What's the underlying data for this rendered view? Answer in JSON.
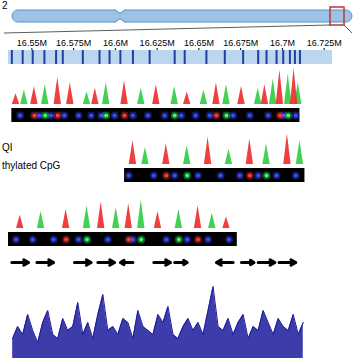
{
  "ideogram": {
    "label": "2"
  },
  "annotations": [
    "QI",
    "thylated CpG"
  ],
  "chart_data": [
    {
      "type": "ruler",
      "xlim": [
        16.536,
        16.73
      ],
      "xticks": [
        {
          "value": 16.55,
          "label": "16.55M"
        },
        {
          "value": 16.575,
          "label": "16.575M"
        },
        {
          "value": 16.6,
          "label": "16.6M"
        },
        {
          "value": 16.625,
          "label": "16.625M"
        },
        {
          "value": 16.65,
          "label": "16.65M"
        },
        {
          "value": 16.675,
          "label": "16.675M"
        },
        {
          "value": 16.7,
          "label": "16.7M"
        },
        {
          "value": 16.725,
          "label": "16.725M"
        }
      ],
      "cpg_sites": [
        16.538,
        16.5445,
        16.5505,
        16.5575,
        16.5645,
        16.5685,
        16.5805,
        16.5905,
        16.5965,
        16.603,
        16.6105,
        16.6205,
        16.6355,
        16.6415,
        16.6545,
        16.6655,
        16.6765,
        16.6855,
        16.6905,
        16.6965,
        16.7005,
        16.7045,
        16.7075,
        16.7105
      ],
      "color": "#1d3fa6"
    },
    {
      "type": "peaks",
      "xlim": [
        16.536,
        16.73
      ],
      "ylim": [
        0,
        100
      ],
      "tick_labels": false,
      "series": [
        {
          "color": "#2ecc40",
          "x": [
            16.5455,
            16.558,
            16.583,
            16.5945,
            16.6155,
            16.6355,
            16.653,
            16.6665,
            16.6855,
            16.6945,
            16.7035,
            16.7095
          ],
          "values": [
            40,
            55,
            35,
            60,
            45,
            50,
            40,
            55,
            45,
            70,
            85,
            60
          ]
        },
        {
          "color": "#ee2a2a",
          "x": [
            16.5405,
            16.5515,
            16.5655,
            16.573,
            16.588,
            16.6055,
            16.6245,
            16.643,
            16.6605,
            16.6755,
            16.6895,
            16.6985,
            16.707
          ],
          "values": [
            30,
            50,
            75,
            60,
            45,
            65,
            55,
            35,
            60,
            50,
            55,
            95,
            100
          ]
        }
      ]
    },
    {
      "type": "image",
      "xlim": [
        16.536,
        16.73
      ],
      "extent": [
        16.538,
        16.7105
      ],
      "series": [
        {
          "color": "#3a4dff",
          "x": [
            16.543,
            16.5545,
            16.5615,
            16.5695,
            16.578,
            16.5855,
            16.5915,
            16.5995,
            16.6105,
            16.6195,
            16.6295,
            16.6395,
            16.648,
            16.6565,
            16.6705,
            16.6805,
            16.6915,
            16.7005,
            16.708
          ]
        },
        {
          "color": "#ff3b3b",
          "x": [
            16.5515,
            16.5655,
            16.6055,
            16.6605,
            16.6985
          ]
        },
        {
          "color": "#3bff6a",
          "x": [
            16.558,
            16.5945,
            16.6355,
            16.6665,
            16.7035
          ]
        }
      ]
    },
    {
      "type": "peaks",
      "xlim": [
        16.536,
        16.73
      ],
      "ylim": [
        0,
        100
      ],
      "tick_labels": false,
      "series": [
        {
          "color": "#ee2a2a",
          "x": [
            16.6105,
            16.6305,
            16.6555,
            16.6805,
            16.703
          ],
          "values": [
            70,
            60,
            80,
            75,
            90
          ]
        },
        {
          "color": "#2ecc40",
          "x": [
            16.618,
            16.643,
            16.668,
            16.6905,
            16.7105
          ],
          "values": [
            50,
            55,
            45,
            60,
            70
          ]
        }
      ]
    },
    {
      "type": "image",
      "xlim": [
        16.536,
        16.73
      ],
      "extent": [
        16.6055,
        16.7135
      ],
      "series": [
        {
          "color": "#3a4dff",
          "x": [
            16.608,
            16.623,
            16.6355,
            16.6495,
            16.663,
            16.6745,
            16.6855,
            16.6965,
            16.708
          ]
        },
        {
          "color": "#ff3b3b",
          "x": [
            16.6305,
            16.6805
          ]
        },
        {
          "color": "#3bff6a",
          "x": [
            16.643,
            16.6905
          ]
        }
      ]
    },
    {
      "type": "peaks",
      "xlim": [
        16.536,
        16.73
      ],
      "ylim": [
        0,
        100
      ],
      "tick_labels": false,
      "series": [
        {
          "color": "#2ecc40",
          "x": [
            16.5555,
            16.583,
            16.6005,
            16.6155,
            16.638,
            16.658
          ],
          "values": [
            45,
            60,
            55,
            75,
            50,
            40
          ]
        },
        {
          "color": "#ee2a2a",
          "x": [
            16.543,
            16.5705,
            16.5915,
            16.608,
            16.6255,
            16.6495,
            16.6665
          ],
          "values": [
            35,
            50,
            70,
            65,
            45,
            60,
            30
          ]
        }
      ]
    },
    {
      "type": "image",
      "xlim": [
        16.536,
        16.73
      ],
      "extent": [
        16.536,
        16.673
      ],
      "series": [
        {
          "color": "#3a4dff",
          "x": [
            16.5405,
            16.5505,
            16.563,
            16.578,
            16.5955,
            16.6105,
            16.6305,
            16.643,
            16.6555,
            16.668
          ]
        },
        {
          "color": "#ff3b3b",
          "x": [
            16.5705,
            16.608,
            16.6495
          ]
        },
        {
          "color": "#3bff6a",
          "x": [
            16.583,
            16.6155,
            16.638
          ]
        }
      ]
    },
    {
      "type": "genes",
      "xlim": [
        16.536,
        16.73
      ],
      "color": "#000000",
      "starts": [
        16.538,
        16.553,
        16.5755,
        16.5895,
        16.6105,
        16.623,
        16.6355,
        16.6705,
        16.6755,
        16.6855,
        16.698
      ],
      "ends": [
        16.548,
        16.563,
        16.5855,
        16.5995,
        16.603,
        16.633,
        16.643,
        16.6605,
        16.683,
        16.6955,
        16.708
      ]
    },
    {
      "type": "signal",
      "xlim": [
        16.536,
        16.73
      ],
      "ylim": [
        0,
        100
      ],
      "tick_labels": false,
      "color": "#1a1a9c",
      "x": [
        16.5385,
        16.5415,
        16.5445,
        16.5475,
        16.5505,
        16.5535,
        16.5565,
        16.5595,
        16.5625,
        16.5655,
        16.5685,
        16.5715,
        16.5745,
        16.5775,
        16.5805,
        16.5835,
        16.5865,
        16.5895,
        16.5925,
        16.5955,
        16.5985,
        16.6015,
        16.6045,
        16.6075,
        16.6105,
        16.6135,
        16.6165,
        16.6195,
        16.6225,
        16.6255,
        16.6285,
        16.6315,
        16.6345,
        16.6375,
        16.6405,
        16.6435,
        16.6465,
        16.6495,
        16.6525,
        16.6555,
        16.6585,
        16.6615,
        16.6645,
        16.6675,
        16.6705,
        16.6735,
        16.6765,
        16.6795,
        16.6825,
        16.6855,
        16.6885,
        16.6915,
        16.6945,
        16.6975,
        16.7005,
        16.7035,
        16.7065,
        16.7095,
        16.7125
      ],
      "values": [
        25,
        40,
        30,
        55,
        35,
        20,
        45,
        60,
        30,
        25,
        50,
        35,
        40,
        70,
        30,
        45,
        25,
        55,
        80,
        35,
        40,
        30,
        50,
        45,
        25,
        60,
        40,
        35,
        30,
        55,
        45,
        65,
        30,
        25,
        40,
        50,
        35,
        45,
        30,
        60,
        90,
        40,
        35,
        50,
        30,
        45,
        55,
        25,
        40,
        35,
        60,
        45,
        30,
        50,
        40,
        35,
        55,
        30,
        45
      ]
    }
  ]
}
